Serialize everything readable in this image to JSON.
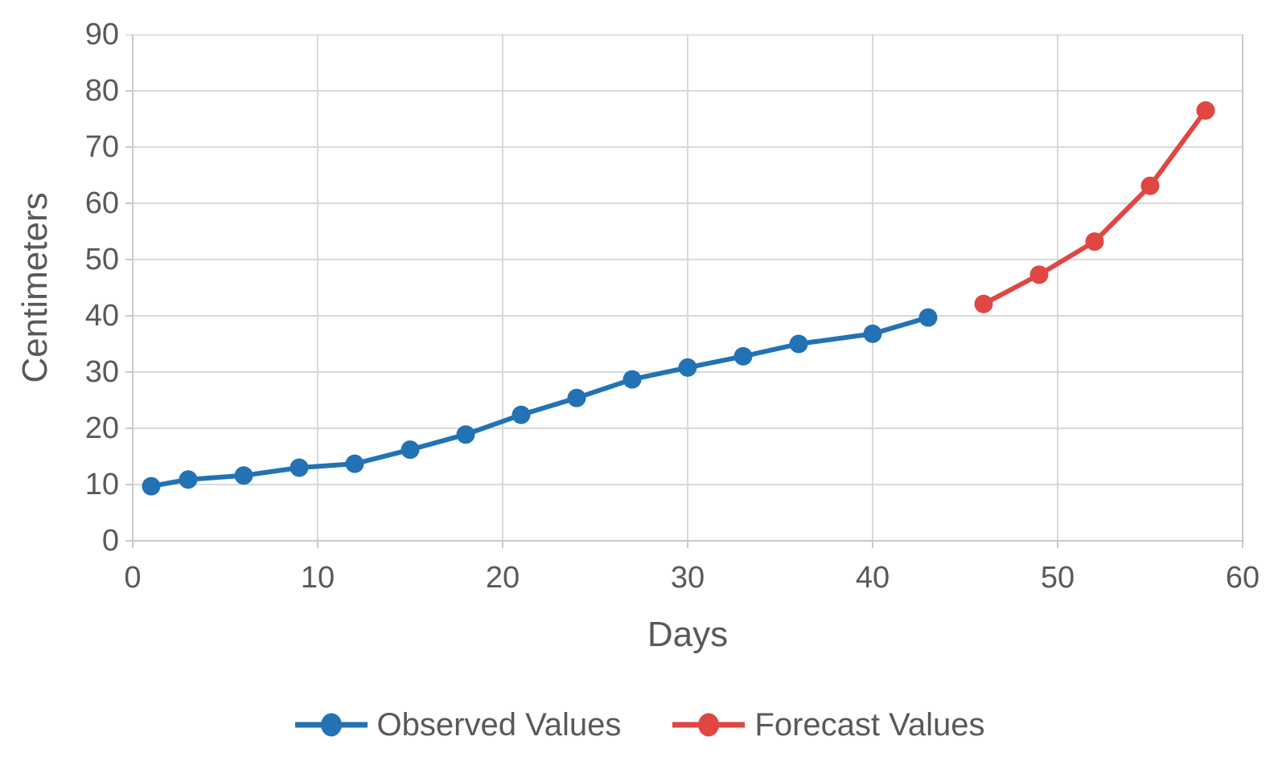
{
  "chart_data": {
    "type": "line",
    "title": "",
    "xlabel": "Days",
    "ylabel": "Centimeters",
    "xlim": [
      0,
      60
    ],
    "ylim": [
      0,
      90
    ],
    "x_ticks": [
      0,
      10,
      20,
      30,
      40,
      50,
      60
    ],
    "y_ticks": [
      0,
      10,
      20,
      30,
      40,
      50,
      60,
      70,
      80,
      90
    ],
    "grid": true,
    "legend_position": "bottom",
    "series": [
      {
        "name": "Observed Values",
        "color": "#2272B5",
        "marker": "circle",
        "x": [
          1,
          3,
          6,
          9,
          12,
          15,
          18,
          21,
          24,
          27,
          30,
          33,
          36,
          40,
          43
        ],
        "values": [
          9.7,
          10.9,
          11.6,
          13.0,
          13.7,
          16.2,
          18.9,
          22.4,
          25.4,
          28.7,
          30.8,
          32.8,
          35.0,
          36.8,
          39.7
        ]
      },
      {
        "name": "Forecast Values",
        "color": "#E04642",
        "marker": "circle",
        "x": [
          46,
          49,
          52,
          55,
          58
        ],
        "values": [
          42.1,
          47.3,
          53.2,
          63.1,
          76.5
        ]
      }
    ]
  },
  "colors": {
    "grid": "#D9D9D9",
    "border": "#C9C9C9",
    "tick_mark": "#C9C9C9",
    "axis_text": "#595959"
  }
}
